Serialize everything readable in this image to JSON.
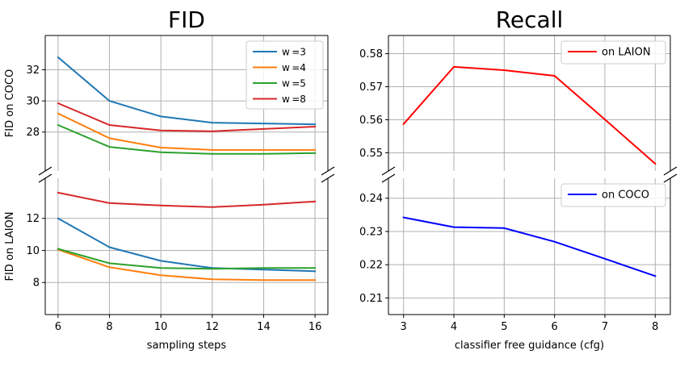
{
  "chart_data": [
    {
      "type": "line",
      "title": "FID",
      "xlabel": "sampling steps",
      "x": [
        6,
        8,
        10,
        12,
        14,
        16
      ],
      "xlim": [
        5.5,
        16.5
      ],
      "xticks": [
        "6",
        "8",
        "10",
        "12",
        "14",
        "16"
      ],
      "grid": true,
      "broken_axis": true,
      "legend_placement": "top-right (upper panel)",
      "panels": [
        {
          "ylabel": "FID on COCO",
          "ylim": [
            25.5,
            34.2
          ],
          "yticks": [
            "28",
            "30",
            "32"
          ],
          "series": [
            {
              "name": "w =3",
              "color": "#1f77b4",
              "values": [
                32.8,
                30.0,
                29.0,
                28.6,
                28.55,
                28.5
              ]
            },
            {
              "name": "w =4",
              "color": "#ff7f0e",
              "values": [
                29.2,
                27.6,
                27.0,
                26.85,
                26.85,
                26.85
              ]
            },
            {
              "name": "w =5",
              "color": "#2ca02c",
              "values": [
                28.45,
                27.05,
                26.7,
                26.6,
                26.6,
                26.65
              ]
            },
            {
              "name": "w =8",
              "color": "#d62728",
              "values": [
                29.85,
                28.45,
                28.1,
                28.05,
                28.2,
                28.35
              ]
            }
          ]
        },
        {
          "ylabel": "FID on LAION",
          "ylim": [
            6.0,
            14.5
          ],
          "yticks": [
            "8",
            "10",
            "12"
          ],
          "series": [
            {
              "name": "w =3",
              "color": "#1f77b4",
              "values": [
                12.0,
                10.2,
                9.35,
                8.9,
                8.8,
                8.7
              ]
            },
            {
              "name": "w =4",
              "color": "#ff7f0e",
              "values": [
                10.05,
                8.95,
                8.45,
                8.2,
                8.15,
                8.15
              ]
            },
            {
              "name": "w =5",
              "color": "#2ca02c",
              "values": [
                10.1,
                9.2,
                8.9,
                8.85,
                8.9,
                8.9
              ]
            },
            {
              "name": "w =8",
              "color": "#d62728",
              "values": [
                13.6,
                12.95,
                12.8,
                12.7,
                12.85,
                13.05
              ]
            }
          ]
        }
      ]
    },
    {
      "type": "line",
      "title": "Recall",
      "xlabel": "classifier free guidance (cfg)",
      "x": [
        3,
        4,
        5,
        6,
        7,
        8
      ],
      "xlim": [
        2.7,
        8.3
      ],
      "xticks": [
        "3",
        "4",
        "5",
        "6",
        "7",
        "8"
      ],
      "grid": true,
      "broken_axis": true,
      "legend_placement": "top-right (each panel)",
      "panels": [
        {
          "ylabel": "",
          "ylim": [
            0.5445,
            0.5855
          ],
          "yticks": [
            "0.55",
            "0.56",
            "0.57",
            "0.58"
          ],
          "series": [
            {
              "name": "on LAION",
              "color": "#ff0000",
              "values": [
                0.5587,
                0.576,
                0.575,
                0.5733,
                0.5601,
                0.5467
              ]
            }
          ]
        },
        {
          "ylabel": "",
          "ylim": [
            0.205,
            0.246
          ],
          "yticks": [
            "0.21",
            "0.22",
            "0.23",
            "0.24"
          ],
          "series": [
            {
              "name": "on COCO",
              "color": "#0000ff",
              "values": [
                0.2342,
                0.2313,
                0.231,
                0.2269,
                0.2218,
                0.2166
              ]
            }
          ]
        }
      ]
    }
  ]
}
